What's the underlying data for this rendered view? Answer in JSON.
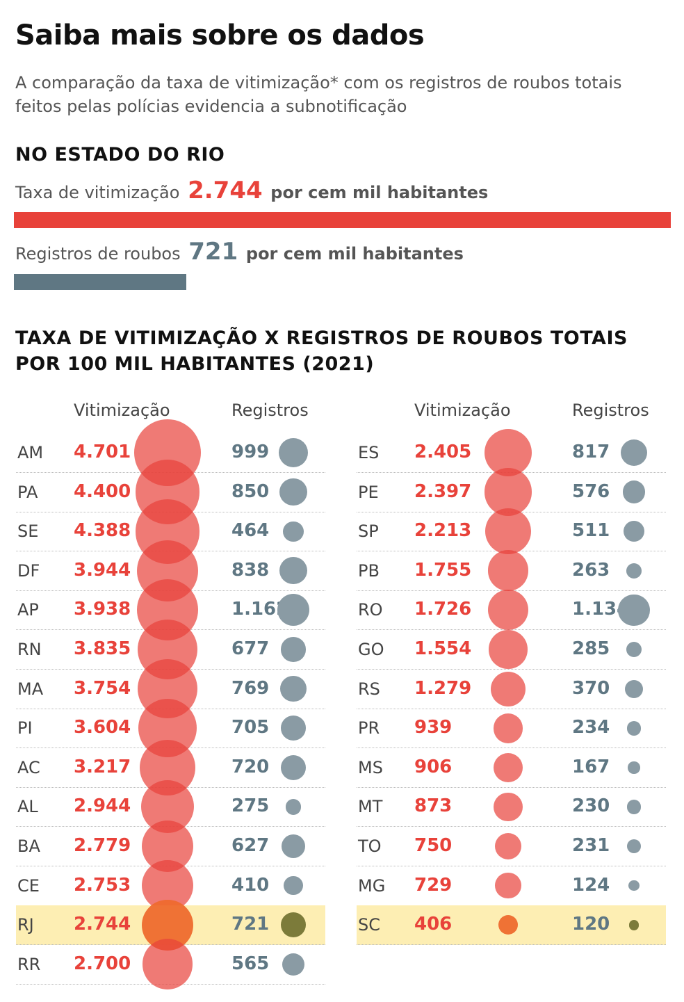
{
  "title": "Saiba mais sobre os dados",
  "subtitle": "A comparação da taxa de vitimização* com os registros de roubos totais feitos pelas polícias evidencia a subnotificação",
  "summary": {
    "heading": "NO ESTADO DO RIO",
    "vitimizacao": {
      "label": "Taxa de vitimização",
      "value": "2.744",
      "unit": "por cem mil habitantes",
      "number": 2744
    },
    "registros": {
      "label": "Registros de roubos",
      "value": "721",
      "unit": "por cem mil habitantes",
      "number": 721
    }
  },
  "table_heading": "TAXA DE VITIMIZAÇÃO X REGISTROS DE ROUBOS TOTAIS POR 100 MIL HABITANTES (2021)",
  "columns": {
    "vitimizacao": "Vitimização",
    "registros": "Registros"
  },
  "colors": {
    "red": "#e8423a",
    "red_circle": "#e8423a",
    "gray": "#5f7783",
    "gray_circle": "#8a9ba4",
    "highlight": "#fdeeb3",
    "hl_red": "#ee6a2e",
    "hl_gray": "#7c7b3a"
  },
  "chart_data": {
    "type": "table",
    "highlight": [
      "RJ",
      "SC"
    ],
    "left": [
      {
        "uf": "AM",
        "vitimizacao": "4.701",
        "registros": "999",
        "v": 4701,
        "r": 999
      },
      {
        "uf": "PA",
        "vitimizacao": "4.400",
        "registros": "850",
        "v": 4400,
        "r": 850
      },
      {
        "uf": "SE",
        "vitimizacao": "4.388",
        "registros": "464",
        "v": 4388,
        "r": 464
      },
      {
        "uf": "DF",
        "vitimizacao": "3.944",
        "registros": "838",
        "v": 3944,
        "r": 838
      },
      {
        "uf": "AP",
        "vitimizacao": "3.938",
        "registros": "1.162",
        "v": 3938,
        "r": 1162
      },
      {
        "uf": "RN",
        "vitimizacao": "3.835",
        "registros": "677",
        "v": 3835,
        "r": 677
      },
      {
        "uf": "MA",
        "vitimizacao": "3.754",
        "registros": "769",
        "v": 3754,
        "r": 769
      },
      {
        "uf": "PI",
        "vitimizacao": "3.604",
        "registros": "705",
        "v": 3604,
        "r": 705
      },
      {
        "uf": "AC",
        "vitimizacao": "3.217",
        "registros": "720",
        "v": 3217,
        "r": 720
      },
      {
        "uf": "AL",
        "vitimizacao": "2.944",
        "registros": "275",
        "v": 2944,
        "r": 275
      },
      {
        "uf": "BA",
        "vitimizacao": "2.779",
        "registros": "627",
        "v": 2779,
        "r": 627
      },
      {
        "uf": "CE",
        "vitimizacao": "2.753",
        "registros": "410",
        "v": 2753,
        "r": 410
      },
      {
        "uf": "RJ",
        "vitimizacao": "2.744",
        "registros": "721",
        "v": 2744,
        "r": 721
      },
      {
        "uf": "RR",
        "vitimizacao": "2.700",
        "registros": "565",
        "v": 2700,
        "r": 565
      }
    ],
    "right": [
      {
        "uf": "ES",
        "vitimizacao": "2.405",
        "registros": "817",
        "v": 2405,
        "r": 817
      },
      {
        "uf": "PE",
        "vitimizacao": "2.397",
        "registros": "576",
        "v": 2397,
        "r": 576
      },
      {
        "uf": "SP",
        "vitimizacao": "2.213",
        "registros": "511",
        "v": 2213,
        "r": 511
      },
      {
        "uf": "PB",
        "vitimizacao": "1.755",
        "registros": "263",
        "v": 1755,
        "r": 263
      },
      {
        "uf": "RO",
        "vitimizacao": "1.726",
        "registros": "1.134",
        "v": 1726,
        "r": 1134
      },
      {
        "uf": "GO",
        "vitimizacao": "1.554",
        "registros": "285",
        "v": 1554,
        "r": 285
      },
      {
        "uf": "RS",
        "vitimizacao": "1.279",
        "registros": "370",
        "v": 1279,
        "r": 370
      },
      {
        "uf": "PR",
        "vitimizacao": "939",
        "registros": "234",
        "v": 939,
        "r": 234
      },
      {
        "uf": "MS",
        "vitimizacao": "906",
        "registros": "167",
        "v": 906,
        "r": 167
      },
      {
        "uf": "MT",
        "vitimizacao": "873",
        "registros": "230",
        "v": 873,
        "r": 230
      },
      {
        "uf": "TO",
        "vitimizacao": "750",
        "registros": "231",
        "v": 750,
        "r": 231
      },
      {
        "uf": "MG",
        "vitimizacao": "729",
        "registros": "124",
        "v": 729,
        "r": 124
      },
      {
        "uf": "SC",
        "vitimizacao": "406",
        "registros": "120",
        "v": 406,
        "r": 120
      }
    ]
  }
}
